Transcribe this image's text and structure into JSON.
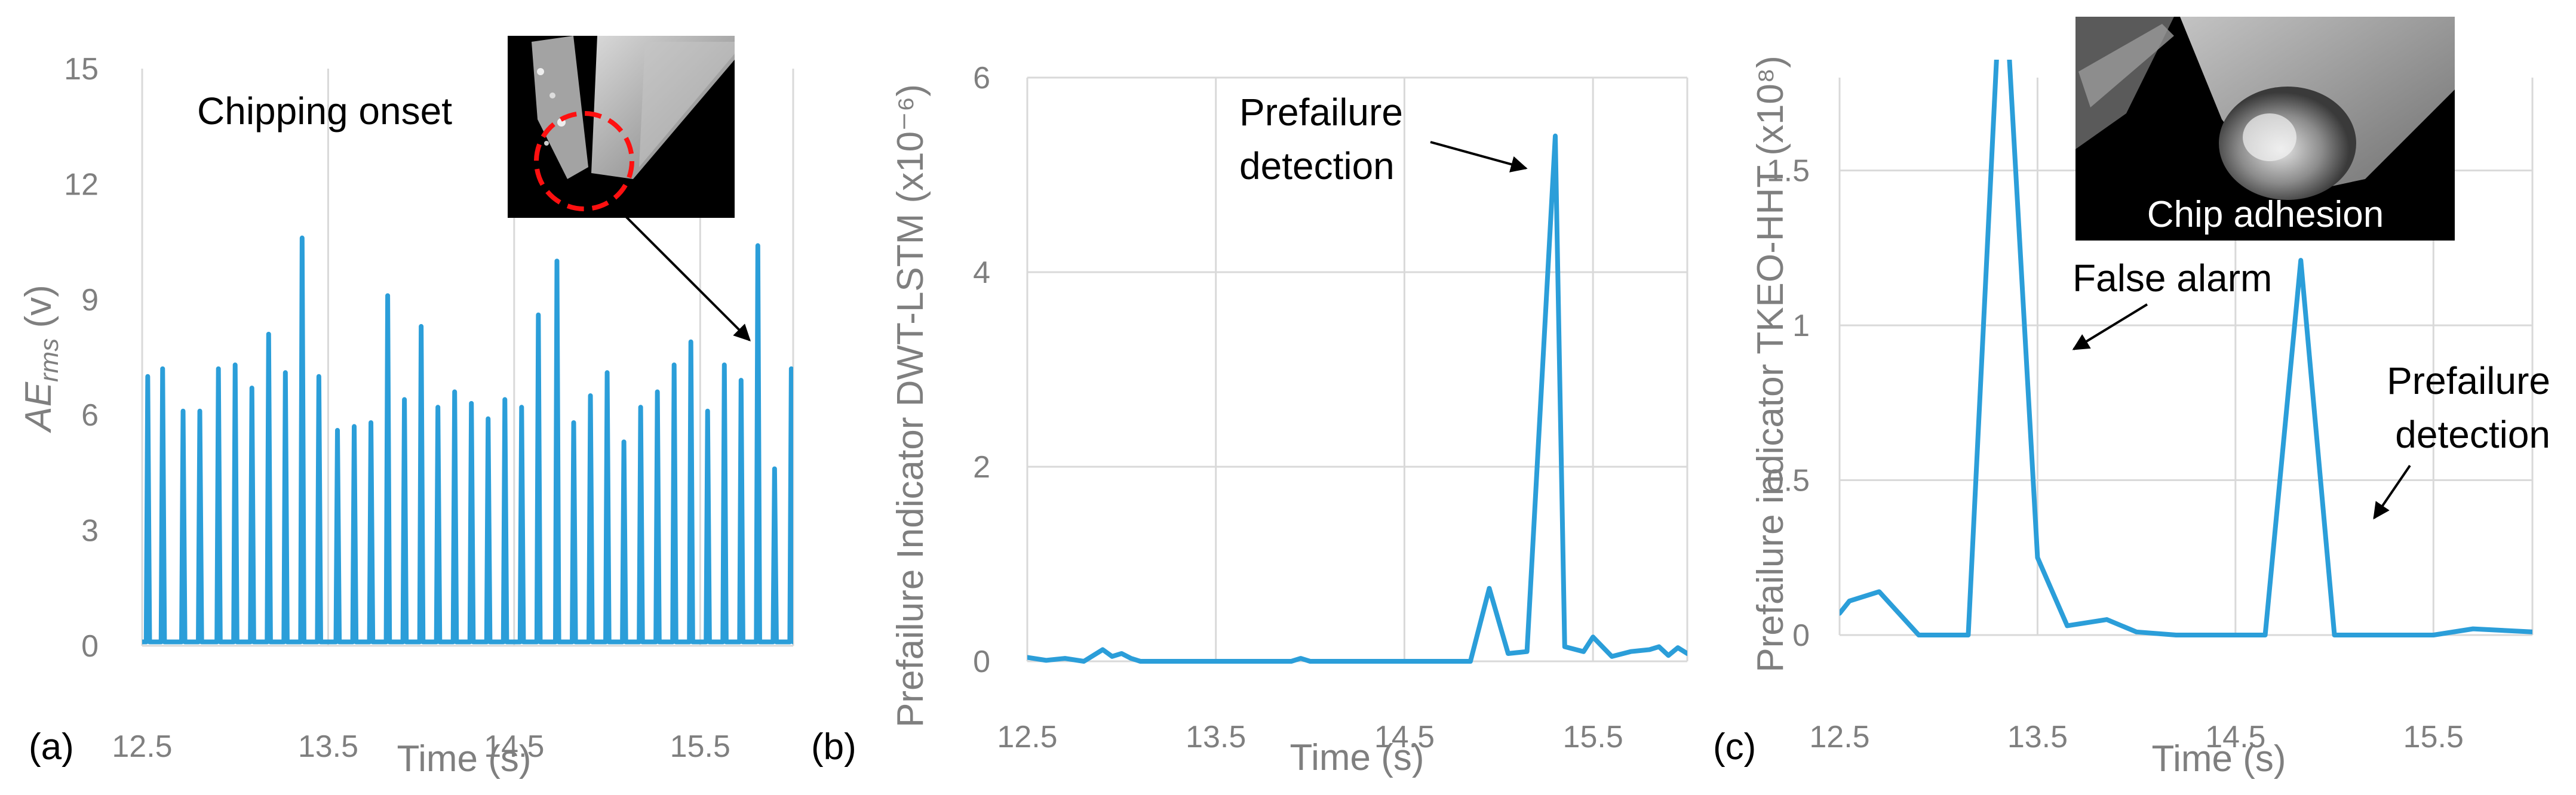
{
  "colors": {
    "series": "#2b9ed9",
    "grid": "#d9d9d9",
    "text": "#7f7f7f"
  },
  "chart_data": [
    {
      "type": "line",
      "panel_label": "(a)",
      "xlabel": "Time (s)",
      "ylabel": "AErms (v)",
      "ylabel_main": "AE",
      "ylabel_sub": "rms",
      "ylabel_unit": " (v)",
      "xlim": [
        12.5,
        16.0
      ],
      "ylim": [
        0,
        15
      ],
      "xticks": [
        12.5,
        13.5,
        14.5,
        15.5
      ],
      "xtick_labels": [
        "12.5",
        "13.5",
        "14.5",
        "15.5"
      ],
      "yticks": [
        0,
        3,
        6,
        9,
        12,
        15
      ],
      "ytick_labels": [
        "0",
        "3",
        "6",
        "9",
        "12",
        "15"
      ],
      "grid": "vertical",
      "burst_times": [
        12.53,
        12.61,
        12.72,
        12.81,
        12.91,
        13.0,
        13.09,
        13.18,
        13.27,
        13.36,
        13.45,
        13.55,
        13.64,
        13.73,
        13.82,
        13.91,
        14.0,
        14.09,
        14.18,
        14.27,
        14.36,
        14.45,
        14.54,
        14.63,
        14.73,
        14.82,
        14.91,
        15.0,
        15.09,
        15.18,
        15.27,
        15.36,
        15.45,
        15.54,
        15.63,
        15.72,
        15.81,
        15.9,
        15.99
      ],
      "burst_peaks": [
        7.0,
        7.2,
        6.1,
        6.1,
        7.2,
        7.3,
        6.7,
        8.1,
        7.1,
        10.6,
        7.0,
        5.6,
        5.7,
        5.8,
        9.1,
        6.4,
        8.3,
        6.2,
        6.6,
        6.3,
        5.9,
        6.4,
        6.2,
        8.6,
        10.0,
        5.8,
        6.5,
        7.1,
        5.3,
        6.2,
        6.6,
        7.3,
        7.9,
        6.1,
        7.3,
        6.9,
        10.4,
        4.6,
        7.2
      ],
      "annotations": {
        "inset_caption": "Chipping onset"
      }
    },
    {
      "type": "line",
      "panel_label": "(b)",
      "xlabel": "Time (s)",
      "ylabel": "Prefailure Indicator DWT-LSTM (x10⁻⁶)",
      "xlim": [
        12.5,
        16.0
      ],
      "ylim": [
        0,
        6
      ],
      "xticks": [
        12.5,
        13.5,
        14.5,
        15.5
      ],
      "xtick_labels": [
        "12.5",
        "13.5",
        "14.5",
        "15.5"
      ],
      "yticks": [
        0,
        2,
        4,
        6
      ],
      "ytick_labels": [
        "0",
        "2",
        "4",
        "6"
      ],
      "grid": "both",
      "x": [
        12.5,
        12.6,
        12.7,
        12.8,
        12.9,
        12.95,
        13.0,
        13.05,
        13.1,
        13.2,
        13.5,
        13.9,
        13.95,
        14.0,
        14.5,
        14.85,
        14.95,
        15.05,
        15.15,
        15.3,
        15.35,
        15.45,
        15.5,
        15.6,
        15.7,
        15.8,
        15.85,
        15.9,
        15.95,
        16.0
      ],
      "y": [
        0.04,
        0.01,
        0.03,
        0.0,
        0.12,
        0.05,
        0.08,
        0.03,
        0.0,
        0.0,
        0.0,
        0.0,
        0.03,
        0.0,
        0.0,
        0.0,
        0.75,
        0.08,
        0.1,
        5.4,
        0.15,
        0.1,
        0.25,
        0.05,
        0.1,
        0.12,
        0.15,
        0.06,
        0.14,
        0.08
      ],
      "annotations": {
        "peak_label": "Prefailure detection"
      }
    },
    {
      "type": "line",
      "panel_label": "(c)",
      "xlabel": "Time (s)",
      "ylabel": "Prefailure indicator TKEO-HHT (x10⁸)",
      "xlim": [
        12.5,
        16.0
      ],
      "ylim": [
        0,
        1.8
      ],
      "xticks": [
        12.5,
        13.5,
        14.5,
        15.5
      ],
      "xtick_labels": [
        "12.5",
        "13.5",
        "14.5",
        "15.5"
      ],
      "yticks": [
        0,
        0.5,
        1,
        1.5
      ],
      "ytick_labels": [
        "0",
        "0.5",
        "1",
        "1.5"
      ],
      "grid": "both",
      "x": [
        12.5,
        12.55,
        12.7,
        12.9,
        13.0,
        13.15,
        13.3,
        13.35,
        13.5,
        13.65,
        13.85,
        14.0,
        14.2,
        14.5,
        14.65,
        14.83,
        15.0,
        15.2,
        15.5,
        15.7,
        16.0
      ],
      "y": [
        0.07,
        0.11,
        0.14,
        0.0,
        0.0,
        0.0,
        1.95,
        1.95,
        0.25,
        0.03,
        0.05,
        0.01,
        0.0,
        0.0,
        0.0,
        1.21,
        0.0,
        0.0,
        0.0,
        0.02,
        0.01
      ],
      "annotations": {
        "false_alarm_label": "False alarm",
        "prefailure_label": "Prefailure detection",
        "inset_caption": "Chip adhesion"
      }
    }
  ]
}
